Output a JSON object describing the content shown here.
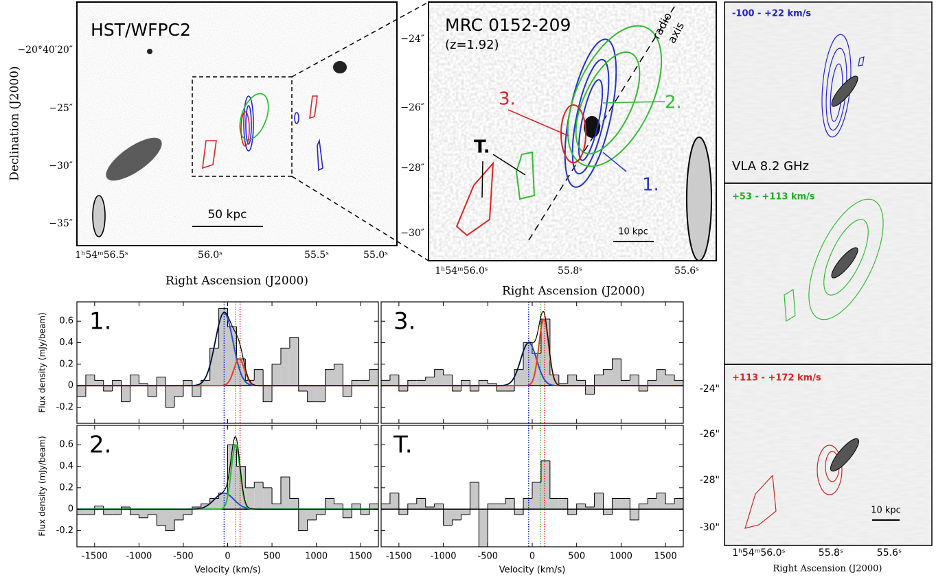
{
  "chart_data": [
    {
      "type": "step",
      "panel_label": "1.",
      "color": "#c8c8c8",
      "fit_color": "#000000",
      "x": [
        -1650,
        -1550,
        -1450,
        -1350,
        -1250,
        -1150,
        -1050,
        -950,
        -850,
        -750,
        -650,
        -550,
        -450,
        -350,
        -250,
        -150,
        -50,
        50,
        150,
        250,
        350,
        450,
        550,
        650,
        750,
        850,
        950,
        1050,
        1150,
        1250,
        1350,
        1450,
        1550,
        1650
      ],
      "values": [
        -0.1,
        0.1,
        0.05,
        -0.05,
        0.05,
        -0.15,
        0.1,
        0.02,
        -0.1,
        0.08,
        -0.2,
        -0.1,
        0.05,
        -0.1,
        0.05,
        0.35,
        0.72,
        0.55,
        0.25,
        0.05,
        0.15,
        -0.15,
        0.2,
        0.35,
        0.45,
        -0.05,
        -0.15,
        -0.15,
        0.15,
        0.2,
        -0.1,
        0.05,
        0.05,
        0.15
      ],
      "fits": [
        {
          "color": "#1f4fd0",
          "amplitude": 0.68,
          "center": -40,
          "sigma": 100
        },
        {
          "color": "#e8401c",
          "amplitude": 0.25,
          "center": 130,
          "sigma": 60
        }
      ],
      "markers": [
        {
          "value": -40,
          "color": "#0000cc"
        },
        {
          "value": 90,
          "color": "#22aa22"
        },
        {
          "value": 140,
          "color": "#dd0000"
        }
      ],
      "xlim": [
        -1700,
        1700
      ],
      "xticks": [
        -1500,
        -1000,
        -500,
        0,
        500,
        1000,
        1500
      ],
      "ylim": [
        -0.35,
        0.78
      ],
      "yticks": [
        -0.2,
        0,
        0.2,
        0.4,
        0.6
      ],
      "xtick_labels": false,
      "ytick_labels": true,
      "ylabel": "Flux density (mJy/beam)"
    },
    {
      "type": "step",
      "panel_label": "3.",
      "color": "#c8c8c8",
      "fit_color": "#000000",
      "x": [
        -1650,
        -1550,
        -1450,
        -1350,
        -1250,
        -1150,
        -1050,
        -950,
        -850,
        -750,
        -650,
        -550,
        -450,
        -350,
        -250,
        -150,
        -50,
        50,
        150,
        250,
        350,
        450,
        550,
        650,
        750,
        850,
        950,
        1050,
        1150,
        1250,
        1350,
        1450,
        1550,
        1650
      ],
      "values": [
        0.05,
        0.1,
        -0.05,
        0.05,
        0.05,
        0.08,
        0.15,
        0.1,
        -0.05,
        0.05,
        -0.05,
        0.05,
        0.02,
        -0.05,
        -0.05,
        0.15,
        0.4,
        0.3,
        0.62,
        0.1,
        0.02,
        0.1,
        0.05,
        -0.08,
        0.1,
        0.15,
        0.25,
        0.05,
        0.1,
        -0.05,
        0.05,
        0.15,
        0.1,
        0.05
      ],
      "fits": [
        {
          "color": "#1f4fd0",
          "amplitude": 0.4,
          "center": -40,
          "sigma": 90
        },
        {
          "color": "#e8401c",
          "amplitude": 0.62,
          "center": 130,
          "sigma": 55
        }
      ],
      "markers": [
        {
          "value": -40,
          "color": "#0000cc"
        },
        {
          "value": 90,
          "color": "#22aa22"
        },
        {
          "value": 140,
          "color": "#dd0000"
        }
      ],
      "xlim": [
        -1700,
        1700
      ],
      "xticks": [
        -1500,
        -1000,
        -500,
        0,
        500,
        1000,
        1500
      ],
      "ylim": [
        -0.35,
        0.78
      ],
      "yticks": [
        -0.2,
        0,
        0.2,
        0.4,
        0.6
      ],
      "xtick_labels": false,
      "ytick_labels": false
    },
    {
      "type": "step",
      "panel_label": "2.",
      "color": "#c8c8c8",
      "fit_color": "#000000",
      "x": [
        -1650,
        -1550,
        -1450,
        -1350,
        -1250,
        -1150,
        -1050,
        -950,
        -850,
        -750,
        -650,
        -550,
        -450,
        -350,
        -250,
        -150,
        -50,
        50,
        150,
        250,
        350,
        450,
        550,
        650,
        750,
        850,
        950,
        1050,
        1150,
        1250,
        1350,
        1450,
        1550,
        1650
      ],
      "values": [
        -0.05,
        -0.05,
        0.03,
        -0.05,
        -0.05,
        0.02,
        -0.05,
        -0.08,
        -0.05,
        -0.15,
        -0.2,
        -0.1,
        -0.05,
        0.02,
        0.05,
        0.1,
        0.15,
        0.6,
        0.4,
        0.2,
        0.25,
        0.2,
        0.05,
        0.3,
        0.1,
        -0.2,
        -0.1,
        -0.05,
        0.1,
        0.05,
        -0.08,
        0.05,
        -0.05,
        0.05
      ],
      "fits": [
        {
          "color": "#1f4fd0",
          "amplitude": 0.15,
          "center": -40,
          "sigma": 110
        },
        {
          "color": "#22c022",
          "amplitude": 0.6,
          "center": 90,
          "sigma": 50
        }
      ],
      "markers": [
        {
          "value": -40,
          "color": "#0000cc"
        },
        {
          "value": 90,
          "color": "#22aa22"
        },
        {
          "value": 140,
          "color": "#dd0000"
        }
      ],
      "xlim": [
        -1700,
        1700
      ],
      "xticks": [
        -1500,
        -1000,
        -500,
        0,
        500,
        1000,
        1500
      ],
      "ylim": [
        -0.35,
        0.78
      ],
      "yticks": [
        -0.2,
        0,
        0.2,
        0.4,
        0.6
      ],
      "xtick_labels": true,
      "ytick_labels": true,
      "ylabel": "Flux density (mJy/beam)",
      "xlabel": "Velocity (km/s)"
    },
    {
      "type": "step",
      "panel_label": "T.",
      "color": "#c8c8c8",
      "fit_color": "#000000",
      "x": [
        -1650,
        -1550,
        -1450,
        -1350,
        -1250,
        -1150,
        -1050,
        -950,
        -850,
        -750,
        -650,
        -550,
        -450,
        -350,
        -250,
        -150,
        -50,
        50,
        150,
        250,
        350,
        450,
        550,
        650,
        750,
        850,
        950,
        1050,
        1150,
        1250,
        1350,
        1450,
        1550,
        1650
      ],
      "values": [
        0.05,
        0.15,
        -0.05,
        0.05,
        0.1,
        0.02,
        0.05,
        -0.15,
        -0.1,
        -0.05,
        0.25,
        -0.35,
        0.05,
        0.05,
        0.1,
        -0.05,
        0.1,
        0.25,
        0.45,
        0.1,
        0.1,
        -0.05,
        0.05,
        0.02,
        0.15,
        -0.05,
        0.1,
        0.1,
        -0.1,
        0.05,
        0.1,
        0.15,
        0.05,
        0.1
      ],
      "fits": [],
      "markers": [
        {
          "value": -40,
          "color": "#0000cc"
        },
        {
          "value": 90,
          "color": "#22aa22"
        },
        {
          "value": 140,
          "color": "#dd0000"
        }
      ],
      "xlim": [
        -1700,
        1700
      ],
      "xticks": [
        -1500,
        -1000,
        -500,
        0,
        500,
        1000,
        1500
      ],
      "ylim": [
        -0.35,
        0.78
      ],
      "yticks": [
        -0.2,
        0,
        0.2,
        0.4,
        0.6
      ],
      "xtick_labels": true,
      "ytick_labels": false,
      "xlabel": "Velocity (km/s)"
    }
  ],
  "images": {
    "hst": {
      "title": "HST/WFPC2",
      "ylabel": "Declination (J2000)",
      "xlabel": "Right Ascension (J2000)",
      "yticks": [
        "−20°40′20″",
        "−25″",
        "−30″",
        "−35″"
      ],
      "xticks": [
        "1ʰ54ᵐ56.5ˢ",
        "56.0ˢ",
        "55.5ˢ",
        "55.0ˢ"
      ],
      "scalebar": "50 kpc"
    },
    "zoom": {
      "title": "MRC 0152-209",
      "subtitle": "(z=1.92)",
      "xlabel": "Right Ascension (J2000)",
      "yticks": [
        "−24″",
        "−26″",
        "−28″",
        "−30″"
      ],
      "xticks": [
        "1ʰ54ᵐ56.0ˢ",
        "55.8ˢ",
        "55.6ˢ"
      ],
      "scalebar": "10 kpc",
      "labels": [
        "1.",
        "2.",
        "3.",
        "T."
      ],
      "axis_label": [
        "radio",
        "axis"
      ]
    },
    "vla": {
      "panels": [
        "-100 - +22 km/s",
        "+53 - +113 km/s",
        "+113 - +172 km/s"
      ],
      "band": "VLA 8.2 GHz",
      "yticks": [
        "-24\"",
        "-26\"",
        "-28\"",
        "-30\""
      ],
      "xticks": [
        "1ʰ54ᵐ56.0ˢ",
        "55.8ˢ",
        "55.6ˢ"
      ],
      "xlabel": "Right Ascension (J2000)",
      "scalebar": "10 kpc"
    }
  }
}
